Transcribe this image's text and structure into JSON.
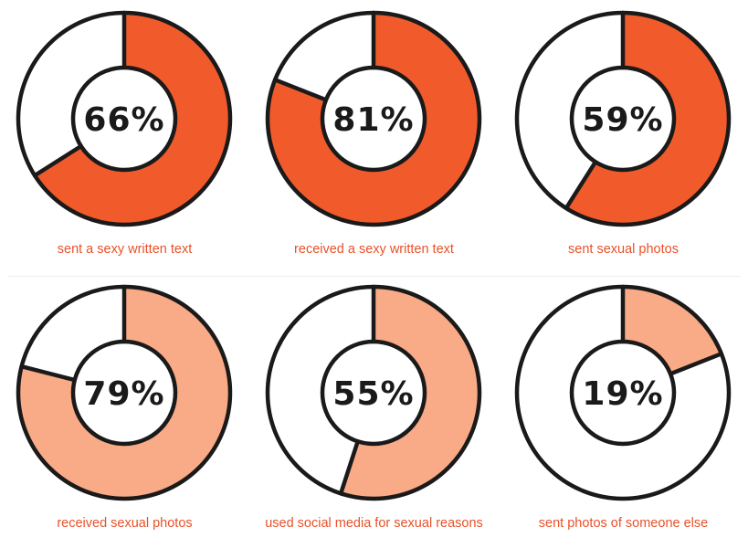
{
  "chart_data": [
    {
      "type": "pie",
      "value": 66,
      "label": "66%",
      "caption": "sent a sexy written text",
      "color": "#f15a2b",
      "caption_color": "#e8522a"
    },
    {
      "type": "pie",
      "value": 81,
      "label": "81%",
      "caption": "received a sexy written text",
      "color": "#f15a2b",
      "caption_color": "#e8522a"
    },
    {
      "type": "pie",
      "value": 59,
      "label": "59%",
      "caption": "sent sexual photos",
      "color": "#f15a2b",
      "caption_color": "#e8522a"
    },
    {
      "type": "pie",
      "value": 79,
      "label": "79%",
      "caption": "received sexual photos",
      "color": "#f9aa86",
      "caption_color": "#e8522a"
    },
    {
      "type": "pie",
      "value": 55,
      "label": "55%",
      "caption": "used social media for sexual reasons",
      "color": "#f9aa86",
      "caption_color": "#e8522a"
    },
    {
      "type": "pie",
      "value": 19,
      "label": "19%",
      "caption": "sent photos of someone else",
      "color": "#f9aa86",
      "caption_color": "#e8522a"
    }
  ],
  "colors": {
    "outline": "#1a1a1a",
    "remainder": "#ffffff"
  }
}
